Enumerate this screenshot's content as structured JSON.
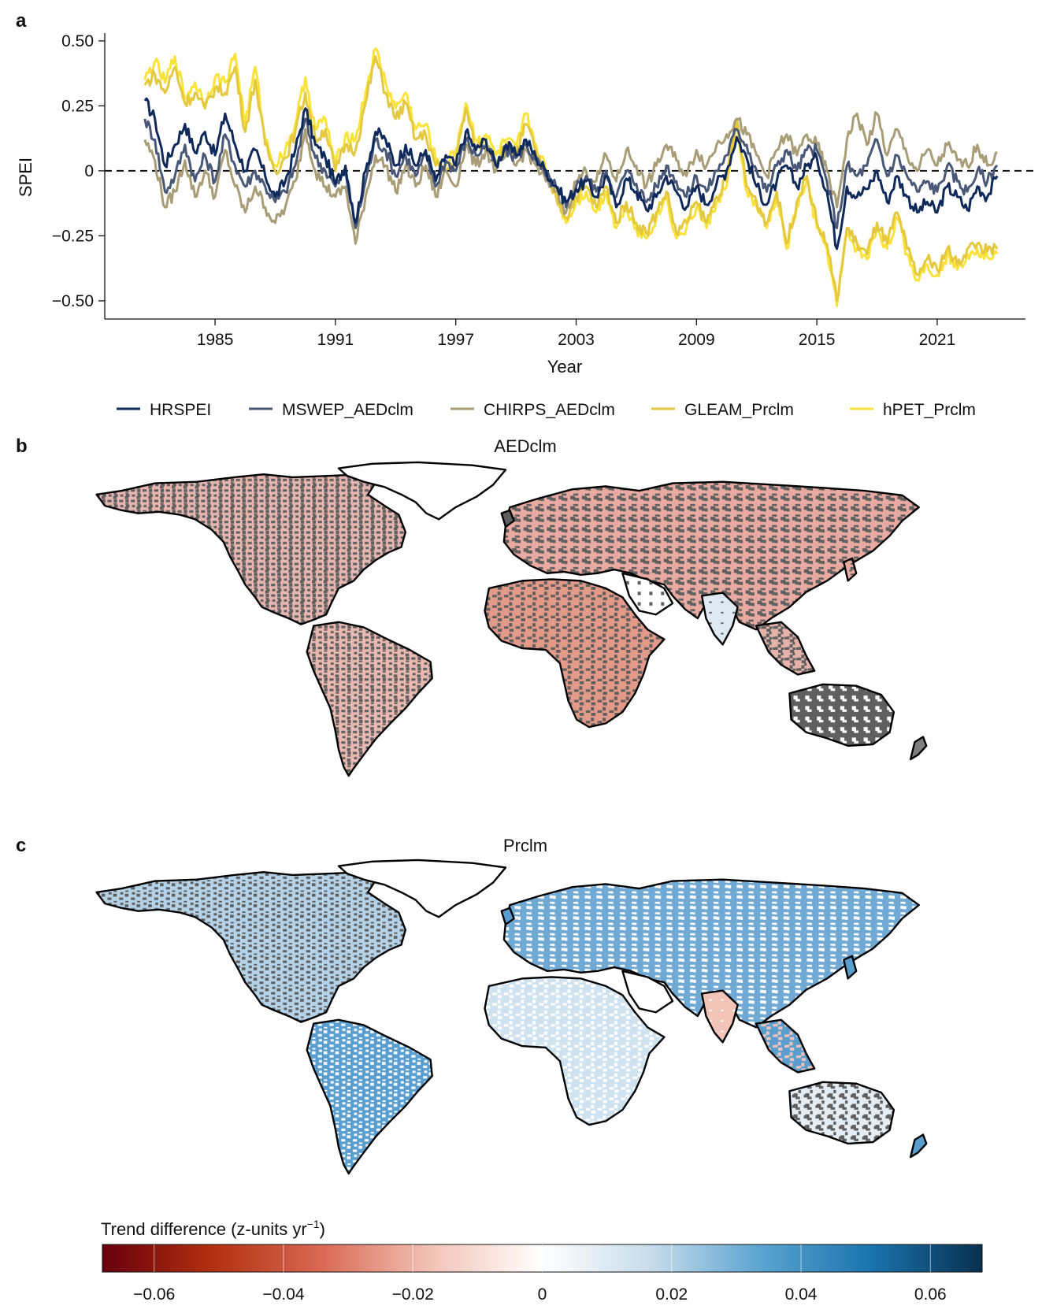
{
  "panels": {
    "a": "a",
    "b": "b",
    "c": "c"
  },
  "colors": {
    "HRSPEI": "#0f2a5a",
    "MSWEP_AEDclm": "#4a5878",
    "CHIRPS_AEDclm": "#a99d78",
    "GLEAM_Prclm": "#e3c840",
    "hPET_Prclm": "#f9e33a",
    "land_gray": "#616161",
    "coast": "#000000"
  },
  "map_titles": {
    "b": "AEDclm",
    "c": "Prclm"
  },
  "colorbar": {
    "title": "Trend difference (z-units yr",
    "title_sup": "−1",
    "title_end": ")",
    "ticks": [
      "−0.06",
      "−0.04",
      "−0.02",
      "0",
      "0.02",
      "0.04",
      "0.06"
    ],
    "tick_values": [
      -0.06,
      -0.04,
      -0.02,
      0,
      0.02,
      0.04,
      0.06
    ],
    "range": [
      -0.068,
      0.068
    ],
    "colormap": [
      "#67000d",
      "#b2300f",
      "#d96a55",
      "#f2c4b8",
      "#ffffff",
      "#c6dbea",
      "#5aa3cf",
      "#1a73ad",
      "#08304f"
    ]
  },
  "chart_data": [
    {
      "type": "line",
      "xlabel": "Year",
      "ylabel": "SPEI",
      "x_ticks": [
        "1985",
        "1991",
        "1997",
        "2003",
        "2009",
        "2015",
        "2021"
      ],
      "x_tick_values": [
        1985,
        1991,
        1997,
        2003,
        2009,
        2015,
        2021
      ],
      "y_ticks": [
        "0.50",
        "0.25",
        "0",
        "−0.25",
        "−0.50"
      ],
      "y_tick_values": [
        0.5,
        0.25,
        0,
        -0.25,
        -0.5
      ],
      "xlim": [
        1979.5,
        2025.4
      ],
      "ylim": [
        -0.57,
        0.53
      ],
      "reference_line": 0,
      "legend_position": "bottom",
      "series": [
        {
          "name": "HRSPEI",
          "x": [
            1981.5,
            1982,
            1982.5,
            1983,
            1983.5,
            1984,
            1984.5,
            1985,
            1985.5,
            1986,
            1986.5,
            1987,
            1987.5,
            1988,
            1988.5,
            1989,
            1989.5,
            1990,
            1990.5,
            1991,
            1991.5,
            1992,
            1992.5,
            1993,
            1993.5,
            1994,
            1994.5,
            1995,
            1995.5,
            1996,
            1996.5,
            1997,
            1997.5,
            1998,
            1998.5,
            1999,
            1999.5,
            2000,
            2000.5,
            2001,
            2001.5,
            2002,
            2002.5,
            2003,
            2003.5,
            2004,
            2004.5,
            2005,
            2005.5,
            2006,
            2006.5,
            2007,
            2007.5,
            2008,
            2008.5,
            2009,
            2009.5,
            2010,
            2010.5,
            2011,
            2011.5,
            2012,
            2012.5,
            2013,
            2013.5,
            2014,
            2014.5,
            2015,
            2015.5,
            2016,
            2016.5,
            2017,
            2017.5,
            2018,
            2018.5,
            2019,
            2019.5,
            2020,
            2020.5,
            2021,
            2021.5,
            2022,
            2022.5,
            2023,
            2023.5,
            2024
          ],
          "y": [
            0.27,
            0.2,
            0.02,
            0.1,
            0.18,
            0.07,
            0.15,
            0.06,
            0.22,
            0.1,
            0.0,
            0.08,
            -0.02,
            -0.1,
            -0.04,
            0.08,
            0.24,
            0.1,
            0.05,
            -0.05,
            0.02,
            -0.2,
            0.0,
            0.15,
            0.12,
            0.02,
            0.1,
            0.02,
            0.08,
            -0.04,
            0.06,
            0.02,
            0.15,
            0.08,
            0.12,
            0.02,
            0.1,
            0.06,
            0.12,
            0.05,
            0.0,
            -0.06,
            -0.12,
            -0.07,
            -0.04,
            -0.1,
            -0.02,
            -0.14,
            -0.03,
            -0.08,
            -0.15,
            -0.1,
            -0.02,
            -0.08,
            -0.14,
            -0.06,
            -0.13,
            -0.05,
            0.0,
            0.13,
            0.05,
            -0.06,
            -0.13,
            -0.04,
            0.02,
            -0.06,
            0.02,
            0.05,
            -0.08,
            -0.3,
            -0.06,
            -0.1,
            -0.07,
            0.0,
            -0.12,
            -0.02,
            -0.1,
            -0.16,
            -0.12,
            -0.16,
            -0.06,
            -0.1,
            -0.15,
            -0.06,
            -0.1,
            -0.02
          ]
        },
        {
          "name": "MSWEP_AEDclm",
          "x": [
            1981.5,
            1982,
            1982.5,
            1983,
            1983.5,
            1984,
            1984.5,
            1985,
            1985.5,
            1986,
            1986.5,
            1987,
            1987.5,
            1988,
            1988.5,
            1989,
            1989.5,
            1990,
            1990.5,
            1991,
            1991.5,
            1992,
            1992.5,
            1993,
            1993.5,
            1994,
            1994.5,
            1995,
            1995.5,
            1996,
            1996.5,
            1997,
            1997.5,
            1998,
            1998.5,
            1999,
            1999.5,
            2000,
            2000.5,
            2001,
            2001.5,
            2002,
            2002.5,
            2003,
            2003.5,
            2004,
            2004.5,
            2005,
            2005.5,
            2006,
            2006.5,
            2007,
            2007.5,
            2008,
            2008.5,
            2009,
            2009.5,
            2010,
            2010.5,
            2011,
            2011.5,
            2012,
            2012.5,
            2013,
            2013.5,
            2014,
            2014.5,
            2015,
            2015.5,
            2016,
            2016.5,
            2017,
            2017.5,
            2018,
            2018.5,
            2019,
            2019.5,
            2020,
            2020.5,
            2021,
            2021.5,
            2022,
            2022.5,
            2023,
            2023.5,
            2024
          ],
          "y": [
            0.2,
            0.12,
            -0.08,
            -0.02,
            0.1,
            -0.04,
            0.06,
            -0.04,
            0.14,
            0.02,
            -0.06,
            0.0,
            -0.06,
            -0.12,
            -0.08,
            0.02,
            0.2,
            0.05,
            0.0,
            -0.06,
            0.0,
            -0.22,
            -0.04,
            0.12,
            0.08,
            -0.02,
            0.06,
            -0.02,
            0.06,
            -0.06,
            0.04,
            0.0,
            0.12,
            0.06,
            0.1,
            0.02,
            0.08,
            0.05,
            0.1,
            0.04,
            -0.02,
            -0.06,
            -0.14,
            -0.06,
            -0.02,
            -0.08,
            0.0,
            -0.1,
            0.0,
            -0.05,
            -0.12,
            -0.06,
            0.02,
            -0.04,
            -0.1,
            -0.02,
            -0.08,
            0.0,
            0.06,
            0.16,
            0.1,
            0.0,
            -0.08,
            0.02,
            0.08,
            0.0,
            0.08,
            0.08,
            -0.04,
            -0.22,
            0.02,
            -0.02,
            0.02,
            0.12,
            -0.02,
            0.06,
            -0.02,
            -0.08,
            -0.04,
            -0.08,
            0.02,
            -0.04,
            -0.08,
            0.0,
            -0.04,
            0.02
          ]
        },
        {
          "name": "CHIRPS_AEDclm",
          "x": [
            1981.5,
            1982,
            1982.5,
            1983,
            1983.5,
            1984,
            1984.5,
            1985,
            1985.5,
            1986,
            1986.5,
            1987,
            1987.5,
            1988,
            1988.5,
            1989,
            1989.5,
            1990,
            1990.5,
            1991,
            1991.5,
            1992,
            1992.5,
            1993,
            1993.5,
            1994,
            1994.5,
            1995,
            1995.5,
            1996,
            1996.5,
            1997,
            1997.5,
            1998,
            1998.5,
            1999,
            1999.5,
            2000,
            2000.5,
            2001,
            2001.5,
            2002,
            2002.5,
            2003,
            2003.5,
            2004,
            2004.5,
            2005,
            2005.5,
            2006,
            2006.5,
            2007,
            2007.5,
            2008,
            2008.5,
            2009,
            2009.5,
            2010,
            2010.5,
            2011,
            2011.5,
            2012,
            2012.5,
            2013,
            2013.5,
            2014,
            2014.5,
            2015,
            2015.5,
            2016,
            2016.5,
            2017,
            2017.5,
            2018,
            2018.5,
            2019,
            2019.5,
            2020,
            2020.5,
            2021,
            2021.5,
            2022,
            2022.5,
            2023,
            2023.5,
            2024
          ],
          "y": [
            0.12,
            0.04,
            -0.14,
            -0.08,
            0.04,
            -0.1,
            0.0,
            -0.1,
            0.08,
            -0.06,
            -0.16,
            -0.06,
            -0.14,
            -0.2,
            -0.14,
            -0.04,
            0.16,
            0.0,
            -0.06,
            -0.1,
            -0.06,
            -0.28,
            -0.1,
            0.06,
            0.02,
            -0.08,
            0.02,
            -0.06,
            0.02,
            -0.1,
            0.0,
            -0.06,
            0.1,
            0.02,
            0.08,
            0.0,
            0.06,
            0.02,
            0.08,
            0.02,
            -0.04,
            -0.08,
            -0.16,
            -0.04,
            0.0,
            -0.04,
            0.06,
            -0.04,
            0.08,
            0.02,
            -0.06,
            0.02,
            0.1,
            0.04,
            -0.02,
            0.08,
            0.02,
            0.1,
            0.14,
            0.2,
            0.14,
            0.06,
            -0.02,
            0.08,
            0.14,
            0.06,
            0.14,
            0.1,
            0.0,
            -0.14,
            0.12,
            0.22,
            0.1,
            0.22,
            0.06,
            0.16,
            0.06,
            0.0,
            0.08,
            0.02,
            0.1,
            0.04,
            0.02,
            0.1,
            0.02,
            0.07
          ]
        },
        {
          "name": "GLEAM_Prclm",
          "x": [
            1981.5,
            1982,
            1982.5,
            1983,
            1983.5,
            1984,
            1984.5,
            1985,
            1985.5,
            1986,
            1986.5,
            1987,
            1987.5,
            1988,
            1988.5,
            1989,
            1989.5,
            1990,
            1990.5,
            1991,
            1991.5,
            1992,
            1992.5,
            1993,
            1993.5,
            1994,
            1994.5,
            1995,
            1995.5,
            1996,
            1996.5,
            1997,
            1997.5,
            1998,
            1998.5,
            1999,
            1999.5,
            2000,
            2000.5,
            2001,
            2001.5,
            2002,
            2002.5,
            2003,
            2003.5,
            2004,
            2004.5,
            2005,
            2005.5,
            2006,
            2006.5,
            2007,
            2007.5,
            2008,
            2008.5,
            2009,
            2009.5,
            2010,
            2010.5,
            2011,
            2011.5,
            2012,
            2012.5,
            2013,
            2013.5,
            2014,
            2014.5,
            2015,
            2015.5,
            2016,
            2016.5,
            2017,
            2017.5,
            2018,
            2018.5,
            2019,
            2019.5,
            2020,
            2020.5,
            2021,
            2021.5,
            2022,
            2022.5,
            2023,
            2023.5,
            2024
          ],
          "y": [
            0.33,
            0.37,
            0.3,
            0.4,
            0.26,
            0.3,
            0.24,
            0.32,
            0.3,
            0.4,
            0.15,
            0.35,
            0.1,
            0.0,
            0.05,
            0.15,
            0.3,
            0.12,
            0.16,
            0.0,
            0.1,
            0.08,
            0.26,
            0.44,
            0.3,
            0.2,
            0.26,
            0.12,
            0.14,
            0.02,
            0.0,
            0.04,
            0.24,
            0.08,
            0.12,
            0.04,
            0.1,
            0.06,
            0.18,
            0.08,
            -0.02,
            -0.1,
            -0.18,
            -0.1,
            -0.06,
            -0.14,
            -0.06,
            -0.2,
            -0.12,
            -0.2,
            -0.24,
            -0.16,
            -0.08,
            -0.24,
            -0.2,
            -0.12,
            -0.2,
            -0.1,
            -0.04,
            0.2,
            -0.06,
            -0.12,
            -0.2,
            -0.08,
            -0.28,
            -0.12,
            -0.02,
            -0.2,
            -0.28,
            -0.5,
            -0.22,
            -0.28,
            -0.32,
            -0.2,
            -0.28,
            -0.16,
            -0.3,
            -0.4,
            -0.34,
            -0.38,
            -0.3,
            -0.36,
            -0.3,
            -0.28,
            -0.31,
            -0.3
          ]
        },
        {
          "name": "hPET_Prclm",
          "x": [
            1981.5,
            1982,
            1982.5,
            1983,
            1983.5,
            1984,
            1984.5,
            1985,
            1985.5,
            1986,
            1986.5,
            1987,
            1987.5,
            1988,
            1988.5,
            1989,
            1989.5,
            1990,
            1990.5,
            1991,
            1991.5,
            1992,
            1992.5,
            1993,
            1993.5,
            1994,
            1994.5,
            1995,
            1995.5,
            1996,
            1996.5,
            1997,
            1997.5,
            1998,
            1998.5,
            1999,
            1999.5,
            2000,
            2000.5,
            2001,
            2001.5,
            2002,
            2002.5,
            2003,
            2003.5,
            2004,
            2004.5,
            2005,
            2005.5,
            2006,
            2006.5,
            2007,
            2007.5,
            2008,
            2008.5,
            2009,
            2009.5,
            2010,
            2010.5,
            2011,
            2011.5,
            2012,
            2012.5,
            2013,
            2013.5,
            2014,
            2014.5,
            2015,
            2015.5,
            2016,
            2016.5,
            2017,
            2017.5,
            2018,
            2018.5,
            2019,
            2019.5,
            2020,
            2020.5,
            2021,
            2021.5,
            2022,
            2022.5,
            2023,
            2023.5,
            2024
          ],
          "y": [
            0.35,
            0.42,
            0.34,
            0.44,
            0.28,
            0.34,
            0.26,
            0.36,
            0.34,
            0.45,
            0.18,
            0.4,
            0.12,
            0.02,
            0.08,
            0.18,
            0.36,
            0.16,
            0.2,
            0.02,
            0.14,
            0.12,
            0.3,
            0.47,
            0.34,
            0.24,
            0.3,
            0.16,
            0.18,
            0.04,
            0.02,
            0.08,
            0.26,
            0.12,
            0.14,
            0.06,
            0.12,
            0.08,
            0.22,
            0.1,
            0.0,
            -0.08,
            -0.2,
            -0.12,
            -0.08,
            -0.16,
            -0.08,
            -0.22,
            -0.14,
            -0.22,
            -0.26,
            -0.18,
            -0.1,
            -0.26,
            -0.22,
            -0.14,
            -0.22,
            -0.12,
            -0.06,
            0.18,
            -0.08,
            -0.14,
            -0.22,
            -0.1,
            -0.3,
            -0.14,
            -0.04,
            -0.22,
            -0.3,
            -0.52,
            -0.24,
            -0.3,
            -0.34,
            -0.22,
            -0.3,
            -0.18,
            -0.32,
            -0.42,
            -0.36,
            -0.4,
            -0.32,
            -0.38,
            -0.32,
            -0.3,
            -0.33,
            -0.32
          ]
        }
      ]
    }
  ]
}
